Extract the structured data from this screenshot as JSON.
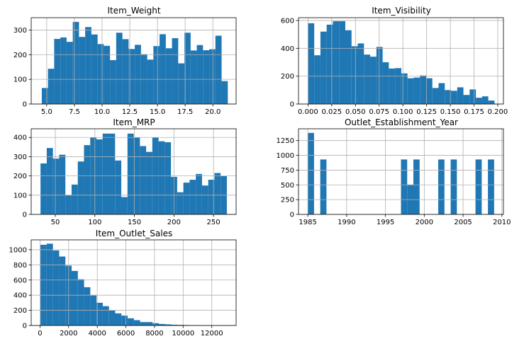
{
  "colors": {
    "bar": "#1f77b4",
    "grid": "#b0b0b0",
    "axis": "#000000",
    "background": "#ffffff"
  },
  "chart_data": [
    {
      "type": "bar",
      "title": "Item_Weight",
      "grid": true,
      "xlim": [
        3.6,
        22.1
      ],
      "ylim": [
        0,
        350
      ],
      "xticks": [
        5.0,
        7.5,
        10.0,
        12.5,
        15.0,
        17.5,
        20.0
      ],
      "xtick_labels": [
        "5.0",
        "7.5",
        "10.0",
        "12.5",
        "15.0",
        "17.5",
        "20.0"
      ],
      "yticks": [
        0,
        100,
        200,
        300
      ],
      "ytick_labels": [
        "0",
        "100",
        "200",
        "300"
      ],
      "bin_start": 4.555,
      "bin_end": 21.35,
      "values": [
        65,
        143,
        264,
        270,
        252,
        333,
        272,
        312,
        282,
        243,
        236,
        178,
        289,
        263,
        223,
        240,
        202,
        180,
        235,
        283,
        226,
        267,
        165,
        289,
        217,
        239,
        218,
        222,
        277,
        93
      ]
    },
    {
      "type": "bar",
      "title": "Item_Visibility",
      "grid": true,
      "xlim": [
        -0.01,
        0.206
      ],
      "ylim": [
        0,
        620
      ],
      "xticks": [
        0.0,
        0.025,
        0.05,
        0.075,
        0.1,
        0.125,
        0.15,
        0.175,
        0.2
      ],
      "xtick_labels": [
        "0.000",
        "0.025",
        "0.050",
        "0.075",
        "0.100",
        "0.125",
        "0.150",
        "0.175",
        "0.200"
      ],
      "yticks": [
        0,
        200,
        400,
        600
      ],
      "ytick_labels": [
        "0",
        "200",
        "400",
        "600"
      ],
      "bin_start": 0.0,
      "bin_end": 0.1966,
      "values": [
        580,
        350,
        520,
        570,
        595,
        595,
        530,
        415,
        435,
        355,
        340,
        410,
        300,
        255,
        258,
        220,
        185,
        190,
        205,
        185,
        115,
        150,
        100,
        95,
        120,
        65,
        105,
        45,
        55,
        25
      ]
    },
    {
      "type": "bar",
      "title": "Item_MRP",
      "grid": true,
      "xlim": [
        19.5,
        278.6
      ],
      "ylim": [
        0,
        445
      ],
      "xticks": [
        50,
        100,
        150,
        200,
        250
      ],
      "xtick_labels": [
        "50",
        "100",
        "150",
        "200",
        "250"
      ],
      "yticks": [
        0,
        100,
        200,
        300,
        400
      ],
      "ytick_labels": [
        "0",
        "100",
        "200",
        "300",
        "400"
      ],
      "bin_start": 31.29,
      "bin_end": 266.89,
      "values": [
        265,
        345,
        290,
        310,
        100,
        155,
        275,
        360,
        400,
        390,
        420,
        420,
        280,
        90,
        420,
        400,
        355,
        325,
        400,
        380,
        375,
        195,
        115,
        165,
        180,
        210,
        150,
        180,
        215,
        200
      ]
    },
    {
      "type": "bar",
      "title": "Outlet_Establishment_Year",
      "grid": true,
      "xlim": [
        1983.8,
        2010.2
      ],
      "ylim": [
        0,
        1450
      ],
      "xticks": [
        1985,
        1990,
        1995,
        2000,
        2005,
        2010
      ],
      "xtick_labels": [
        "1985",
        "1990",
        "1995",
        "2000",
        "2005",
        "2010"
      ],
      "yticks": [
        0,
        250,
        500,
        750,
        1000,
        1250
      ],
      "ytick_labels": [
        "0",
        "250",
        "500",
        "750",
        "1000",
        "1250"
      ],
      "bin_start": 1985,
      "bin_end": 2009,
      "values": [
        1380,
        0,
        930,
        0,
        0,
        0,
        0,
        0,
        0,
        0,
        0,
        0,
        0,
        0,
        0,
        930,
        505,
        930,
        0,
        0,
        0,
        930,
        0,
        930,
        0,
        0,
        0,
        930,
        0,
        930
      ]
    },
    {
      "type": "bar",
      "title": "Item_Outlet_Sales",
      "grid": true,
      "xlim": [
        -615,
        13700
      ],
      "ylim": [
        0,
        1130
      ],
      "xticks": [
        0,
        2000,
        4000,
        6000,
        8000,
        10000,
        12000
      ],
      "xtick_labels": [
        "0",
        "2000",
        "4000",
        "6000",
        "8000",
        "10000",
        "12000"
      ],
      "yticks": [
        0,
        200,
        400,
        600,
        800,
        1000
      ],
      "ytick_labels": [
        "0",
        "200",
        "400",
        "600",
        "800",
        "1000"
      ],
      "bin_start": 33.29,
      "bin_end": 13086.96,
      "values": [
        1065,
        1080,
        990,
        910,
        790,
        720,
        610,
        505,
        400,
        300,
        255,
        200,
        160,
        130,
        95,
        70,
        45,
        45,
        30,
        20,
        15,
        10,
        8,
        6,
        4,
        3,
        2,
        1,
        0,
        1
      ]
    }
  ]
}
